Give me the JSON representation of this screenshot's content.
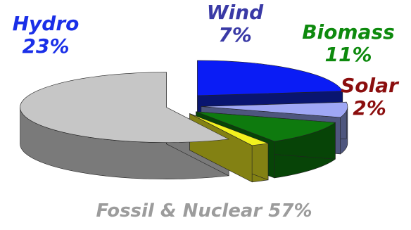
{
  "chart_data": {
    "type": "pie",
    "title": "",
    "categories": [
      "Hydro",
      "Wind",
      "Biomass",
      "Solar",
      "Fossil & Nuclear"
    ],
    "values": [
      23,
      7,
      11,
      2,
      57
    ],
    "unit": "%",
    "exploded": true,
    "three_d": true,
    "slices": [
      {
        "name": "Hydro",
        "value": 23,
        "label": "Hydro",
        "pct_label": "23%",
        "color": "#0a1cf5",
        "side_color": "#091570",
        "text_color": "#1a2fe8"
      },
      {
        "name": "Wind",
        "value": 7,
        "label": "Wind",
        "pct_label": "7%",
        "color": "#9fa7f5",
        "side_color": "#4e567e",
        "text_color": "#3a3aa6"
      },
      {
        "name": "Biomass",
        "value": 11,
        "label": "Biomass",
        "pct_label": "11%",
        "color": "#0e7a0e",
        "side_color": "#074407",
        "text_color": "#0e8a0e"
      },
      {
        "name": "Solar",
        "value": 2,
        "label": "Solar",
        "pct_label": "2%",
        "color": "#f2f21e",
        "side_color": "#838113",
        "text_color": "#8b0e0e"
      },
      {
        "name": "Fossil & Nuclear",
        "value": 57,
        "label": "Fossil & Nuclear",
        "pct_label": "57%",
        "color": "#c6c6c6",
        "side_color": "#7a7a7a",
        "text_color": "#9c9c9c"
      }
    ]
  }
}
